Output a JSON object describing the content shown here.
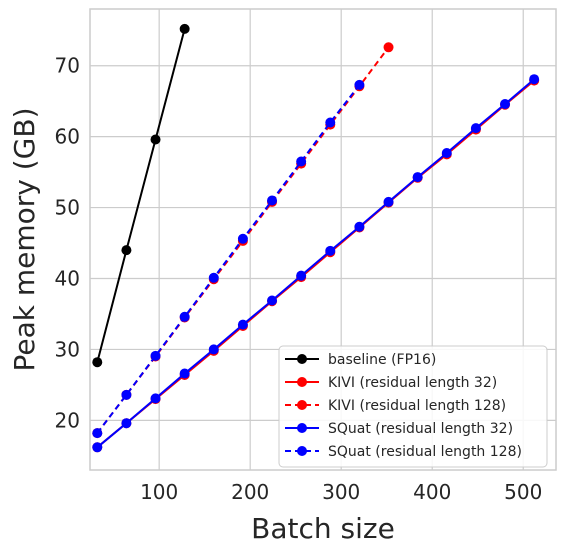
{
  "chart_data": {
    "type": "line",
    "title": "",
    "xlabel": "Batch size",
    "ylabel": "Peak memory (GB)",
    "xlim": [
      24,
      536
    ],
    "ylim": [
      13,
      78
    ],
    "xticks": [
      100,
      200,
      300,
      400,
      500
    ],
    "yticks": [
      20,
      30,
      40,
      50,
      60,
      70
    ],
    "grid": true,
    "legend_position": "lower-right",
    "series": [
      {
        "name": "baseline (FP16)",
        "color": "#000000",
        "linestyle": "solid",
        "x": [
          32,
          64,
          96,
          128
        ],
        "y": [
          28.2,
          44.0,
          59.6,
          75.2
        ]
      },
      {
        "name": "KIVI (residual length 32)",
        "color": "#ff0000",
        "linestyle": "solid",
        "x": [
          32,
          64,
          96,
          128,
          160,
          192,
          224,
          256,
          288,
          320,
          352,
          384,
          416,
          448,
          480,
          512
        ],
        "y": [
          16.2,
          19.6,
          23.0,
          26.4,
          29.8,
          33.3,
          36.8,
          40.2,
          43.7,
          47.2,
          50.7,
          54.2,
          57.5,
          61.0,
          64.5,
          67.9
        ]
      },
      {
        "name": "KIVI (residual length 128)",
        "color": "#ff0000",
        "linestyle": "dashed",
        "x": [
          32,
          64,
          96,
          128,
          160,
          192,
          224,
          256,
          288,
          320,
          352
        ],
        "y": [
          18.2,
          23.6,
          29.0,
          34.5,
          39.9,
          45.3,
          50.8,
          56.2,
          61.7,
          67.1,
          72.6
        ]
      },
      {
        "name": "SQuat (residual length 32)",
        "color": "#0000ff",
        "linestyle": "solid",
        "x": [
          32,
          64,
          96,
          128,
          160,
          192,
          224,
          256,
          288,
          320,
          352,
          384,
          416,
          448,
          480,
          512
        ],
        "y": [
          16.2,
          19.6,
          23.1,
          26.6,
          30.0,
          33.5,
          36.9,
          40.4,
          43.9,
          47.3,
          50.8,
          54.3,
          57.7,
          61.2,
          64.6,
          68.1
        ]
      },
      {
        "name": "SQuat (residual length 128)",
        "color": "#0000ff",
        "linestyle": "dashed",
        "x": [
          32,
          64,
          96,
          128,
          160,
          192,
          224,
          256,
          288,
          320
        ],
        "y": [
          18.2,
          23.6,
          29.1,
          34.6,
          40.1,
          45.6,
          51.0,
          56.5,
          62.0,
          67.3
        ]
      }
    ]
  }
}
